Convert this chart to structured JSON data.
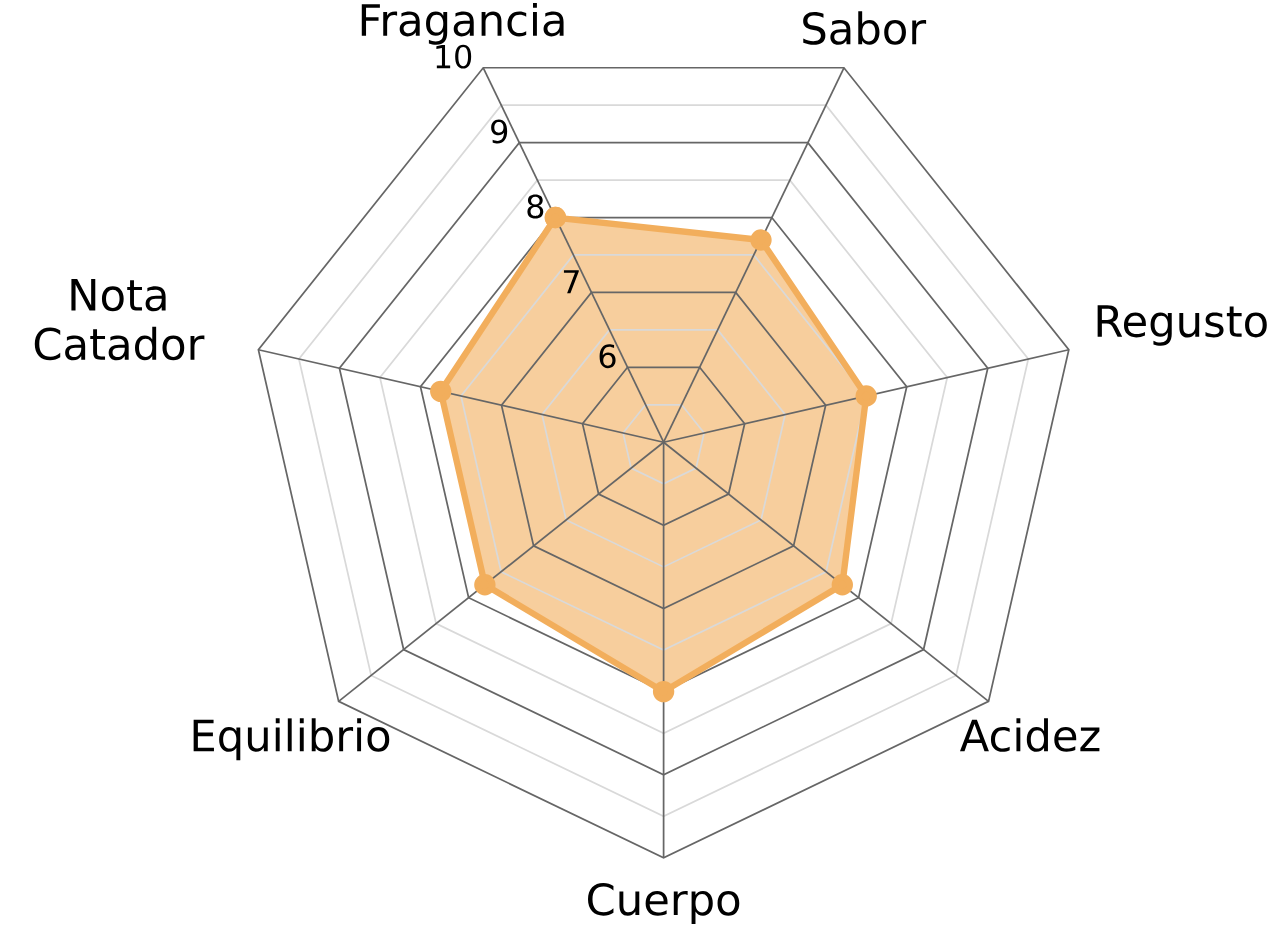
{
  "chart_data": {
    "type": "radar",
    "categories": [
      "Fragancia",
      "Sabor",
      "Regusto",
      "Acidez",
      "Cuerpo",
      "Equilibrio",
      "Nota Catador"
    ],
    "series": [
      {
        "color": "#f2ae5c",
        "values": [
          8.0,
          7.7,
          7.5,
          7.75,
          8.0,
          7.75,
          7.75
        ]
      }
    ],
    "ylim": [
      5,
      10
    ],
    "yticks": [
      6,
      7,
      8,
      9,
      10
    ],
    "grid": true,
    "marker": "circle"
  }
}
